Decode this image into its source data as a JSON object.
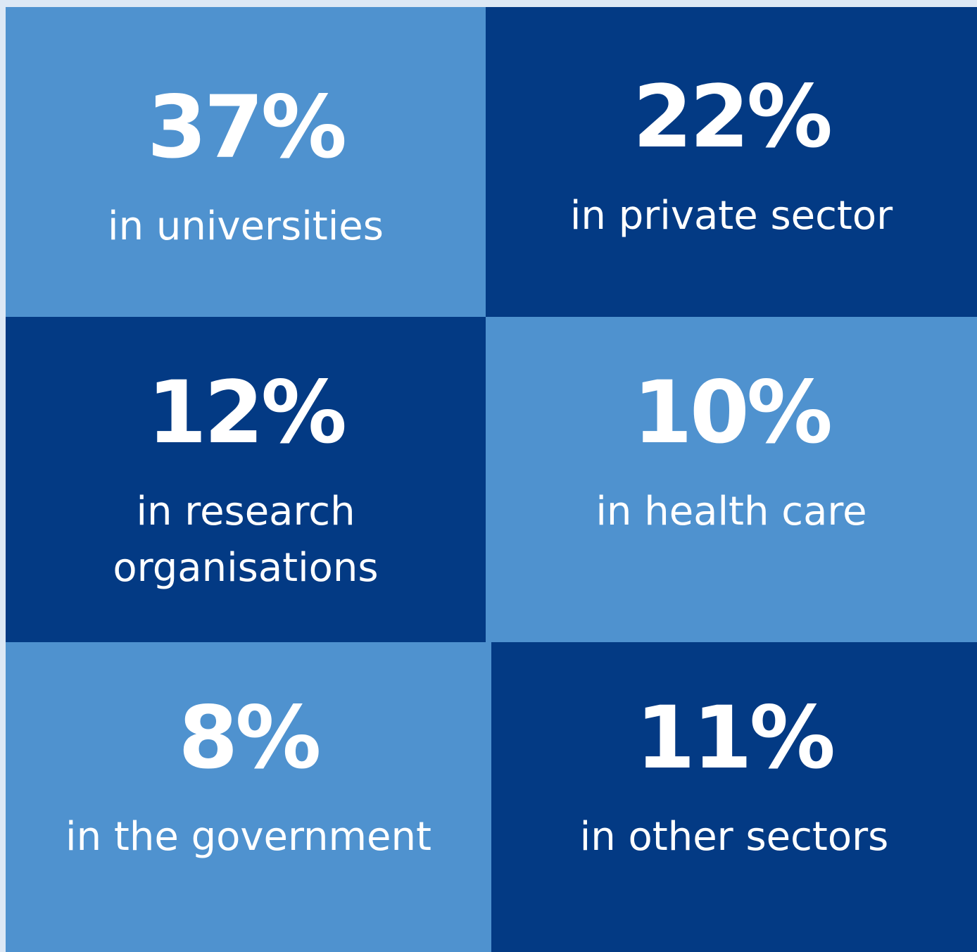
{
  "tiles": [
    {
      "value": "37%",
      "label": "in universities",
      "color": "#4f92cf"
    },
    {
      "value": "22%",
      "label": "in private sector",
      "color": "#033a84"
    },
    {
      "value": "12%",
      "label": "in research organisations",
      "color": "#033a84"
    },
    {
      "value": "10%",
      "label": "in health care",
      "color": "#4f92cf"
    },
    {
      "value": "8%",
      "label": "in the government",
      "color": "#4f92cf"
    },
    {
      "value": "11%",
      "label": "in other sectors",
      "color": "#033a84"
    }
  ]
}
